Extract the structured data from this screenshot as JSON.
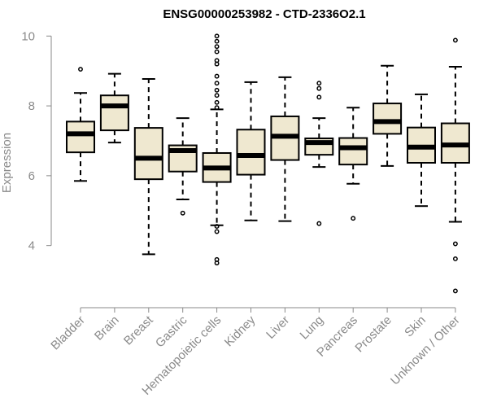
{
  "chart_data": {
    "type": "boxplot",
    "title": "ENSG00000253982 - CTD-2336O2.1",
    "xlabel": "",
    "ylabel": "Expression",
    "ylim": [
      2.5,
      10.1
    ],
    "yticks": [
      4,
      6,
      8,
      10
    ],
    "grid": false,
    "colors": {
      "box_fill": "#efe8d0",
      "box_stroke": "#000000",
      "axis": "#8a8a8a"
    },
    "categories": [
      "Bladder",
      "Brain",
      "Breast",
      "Gastric",
      "Hematopoietic cells",
      "Kidney",
      "Liver",
      "Lung",
      "Pancreas",
      "Prostate",
      "Skin",
      "Unknown / Other"
    ],
    "boxes": [
      {
        "category": "Bladder",
        "whisker_low": 5.85,
        "q1": 6.67,
        "median": 7.2,
        "q3": 7.55,
        "whisker_high": 8.37,
        "outliers": [
          9.05
        ]
      },
      {
        "category": "Brain",
        "whisker_low": 6.95,
        "q1": 7.3,
        "median": 8.0,
        "q3": 8.3,
        "whisker_high": 8.92,
        "outliers": []
      },
      {
        "category": "Breast",
        "whisker_low": 3.75,
        "q1": 5.9,
        "median": 6.5,
        "q3": 7.37,
        "whisker_high": 8.77,
        "outliers": []
      },
      {
        "category": "Gastric",
        "whisker_low": 5.32,
        "q1": 6.12,
        "median": 6.72,
        "q3": 6.87,
        "whisker_high": 7.65,
        "outliers": [
          4.93
        ]
      },
      {
        "category": "Hematopoietic cells",
        "whisker_low": 4.58,
        "q1": 5.82,
        "median": 6.22,
        "q3": 6.65,
        "whisker_high": 7.9,
        "outliers": [
          10.0,
          9.85,
          9.7,
          9.55,
          9.3,
          9.2,
          8.85,
          8.65,
          8.45,
          8.3,
          8.1,
          7.95,
          4.55,
          4.4,
          3.6,
          3.5
        ]
      },
      {
        "category": "Kidney",
        "whisker_low": 4.72,
        "q1": 6.03,
        "median": 6.58,
        "q3": 7.32,
        "whisker_high": 8.68,
        "outliers": []
      },
      {
        "category": "Liver",
        "whisker_low": 4.7,
        "q1": 6.45,
        "median": 7.13,
        "q3": 7.7,
        "whisker_high": 8.82,
        "outliers": []
      },
      {
        "category": "Lung",
        "whisker_low": 6.25,
        "q1": 6.6,
        "median": 6.95,
        "q3": 7.07,
        "whisker_high": 7.65,
        "outliers": [
          8.65,
          8.5,
          8.25,
          4.63
        ]
      },
      {
        "category": "Pancreas",
        "whisker_low": 5.77,
        "q1": 6.32,
        "median": 6.8,
        "q3": 7.08,
        "whisker_high": 7.95,
        "outliers": [
          4.78
        ]
      },
      {
        "category": "Prostate",
        "whisker_low": 6.28,
        "q1": 7.2,
        "median": 7.55,
        "q3": 8.07,
        "whisker_high": 9.15,
        "outliers": []
      },
      {
        "category": "Skin",
        "whisker_low": 5.13,
        "q1": 6.37,
        "median": 6.82,
        "q3": 7.38,
        "whisker_high": 8.33,
        "outliers": []
      },
      {
        "category": "Unknown / Other",
        "whisker_low": 4.68,
        "q1": 6.37,
        "median": 6.88,
        "q3": 7.5,
        "whisker_high": 9.12,
        "outliers": [
          9.88,
          4.05,
          3.62,
          2.7
        ]
      }
    ]
  }
}
